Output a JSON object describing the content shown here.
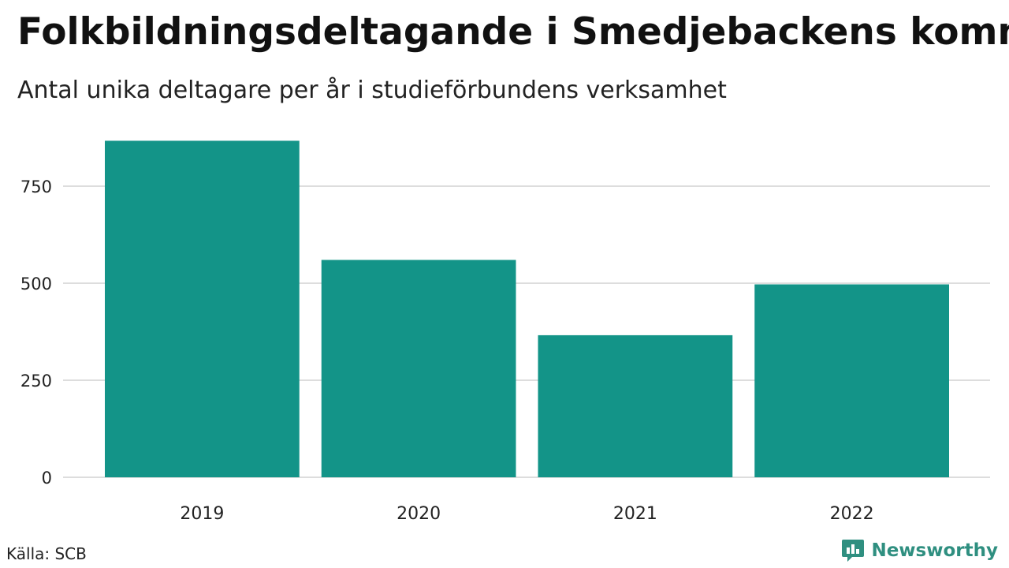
{
  "header": {
    "title": "Folkbildningsdeltagande i Smedjebackens kommun",
    "subtitle": "Antal unika deltagare per år i studieförbundens verksamhet"
  },
  "footer": {
    "source": "Källa: SCB",
    "brand": "Newsworthy",
    "brand_icon": "newsworthy-logo-icon"
  },
  "colors": {
    "bar": "#139488",
    "grid": "#dddddd",
    "brand": "#2f8f80"
  },
  "chart_data": {
    "type": "bar",
    "title": "Folkbildningsdeltagande i Smedjebackens kommun",
    "subtitle": "Antal unika deltagare per år i studieförbundens verksamhet",
    "xlabel": "",
    "ylabel": "",
    "categories": [
      "2019",
      "2020",
      "2021",
      "2022"
    ],
    "values": [
      867,
      560,
      366,
      497
    ],
    "ylim": [
      0,
      900
    ],
    "yticks": [
      0,
      250,
      500,
      750
    ],
    "grid": true,
    "legend": "none"
  }
}
